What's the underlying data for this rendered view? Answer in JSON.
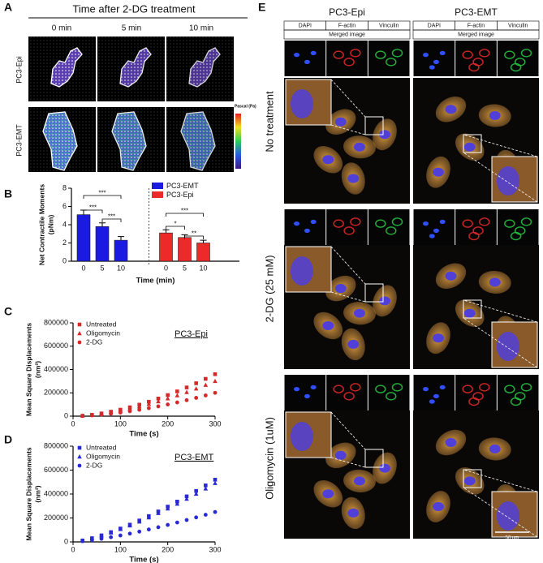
{
  "panel_a": {
    "label": "A",
    "title": "Time after 2-DG treatment",
    "columns": [
      "0 min",
      "5 min",
      "10 min"
    ],
    "rows": [
      "PC3-Epi",
      "PC3-EMT"
    ],
    "colorbar_label": "Pascal (Pa)"
  },
  "panel_labels": [
    "B",
    "C",
    "D"
  ],
  "chart_data": [
    {
      "type": "bar",
      "ylabel": [
        "Net Contractile Moments",
        "(pNm)"
      ],
      "xlabel": "Time (min)",
      "categories": [
        "0",
        "5",
        "10"
      ],
      "series": [
        {
          "name": "PC3-EMT",
          "color": "#1a1ae0",
          "values": [
            5.1,
            3.8,
            2.3
          ],
          "errors": [
            0.5,
            0.4,
            0.4
          ]
        },
        {
          "name": "PC3-Epi",
          "color": "#ec2a2a",
          "values": [
            3.1,
            2.6,
            2.0
          ],
          "errors": [
            0.35,
            0.3,
            0.3
          ]
        }
      ],
      "annotations": [
        "***",
        "***",
        "***",
        "***",
        "*",
        "**"
      ],
      "ylim": [
        0,
        8
      ],
      "yticks": [
        0,
        2,
        4,
        6,
        8
      ]
    },
    {
      "type": "scatter",
      "ylabel": [
        "Mean Square Displacements",
        "(nm²)"
      ],
      "xlabel": "Time (s)",
      "annotation": "PC3-Epi",
      "x": [
        20,
        40,
        60,
        80,
        100,
        120,
        140,
        160,
        180,
        200,
        220,
        240,
        260,
        280,
        300
      ],
      "series": [
        {
          "name": "Untreated",
          "color": "#d42a2a",
          "marker": "square",
          "values": [
            3600,
            11500,
            23400,
            38200,
            55400,
            76000,
            98600,
            123500,
            151200,
            180700,
            212400,
            246200,
            282200,
            320000,
            360000
          ]
        },
        {
          "name": "Oligomycin",
          "color": "#d42a2a",
          "marker": "triangle",
          "values": [
            3000,
            9600,
            19500,
            31800,
            46200,
            63300,
            82200,
            102900,
            126000,
            150600,
            177000,
            205200,
            235200,
            266700,
            300000
          ]
        },
        {
          "name": "2-DG",
          "color": "#d42a2a",
          "marker": "circle",
          "values": [
            2000,
            6400,
            13000,
            21200,
            30800,
            42200,
            54800,
            68600,
            84000,
            100400,
            118000,
            136800,
            156800,
            177800,
            200000
          ]
        }
      ],
      "xlim": [
        0,
        300
      ],
      "xticks": [
        0,
        100,
        200,
        300
      ],
      "ylim": [
        0,
        800000
      ],
      "yticks": [
        0,
        200000,
        400000,
        600000,
        800000
      ]
    },
    {
      "type": "scatter",
      "ylabel": [
        "Mean Square Displacements",
        "(nm²)"
      ],
      "xlabel": "Time (s)",
      "annotation": "PC3-EMT",
      "x": [
        20,
        40,
        60,
        80,
        100,
        120,
        140,
        160,
        180,
        200,
        220,
        240,
        260,
        280,
        300
      ],
      "series": [
        {
          "name": "Untreated",
          "color": "#2a2ad4",
          "marker": "square",
          "values": [
            11800,
            30900,
            54600,
            81600,
            111800,
            144000,
            178900,
            215800,
            254300,
            294800,
            337000,
            380600,
            425900,
            472200,
            520000
          ]
        },
        {
          "name": "Oligomycin",
          "color": "#2a2ad4",
          "marker": "triangle",
          "values": [
            11100,
            29200,
            51500,
            76900,
            105400,
            135700,
            168600,
            203400,
            239600,
            277800,
            317500,
            358700,
            401300,
            444900,
            490000
          ]
        },
        {
          "name": "2-DG",
          "color": "#2a2ad4",
          "marker": "circle",
          "values": [
            5700,
            14900,
            26300,
            39300,
            53800,
            69300,
            86000,
            103800,
            122300,
            141800,
            162000,
            183000,
            204800,
            227000,
            250000
          ]
        }
      ],
      "xlim": [
        0,
        300
      ],
      "xticks": [
        0,
        100,
        200,
        300
      ],
      "ylim": [
        0,
        800000
      ],
      "yticks": [
        0,
        200000,
        400000,
        600000,
        800000
      ]
    }
  ],
  "panel_e": {
    "label": "E",
    "columns": [
      {
        "title": "PC3-Epi",
        "channels": [
          "DAPI",
          "F-actin",
          "Vinculin"
        ],
        "merged": "Merged image"
      },
      {
        "title": "PC3-EMT",
        "channels": [
          "DAPI",
          "F-actin",
          "Vinculin"
        ],
        "merged": "Merged image"
      }
    ],
    "rows": [
      "No treatment",
      "2-DG (25 mM)",
      "Oligomycin (1uM)"
    ],
    "scale_bar": "50 um"
  }
}
